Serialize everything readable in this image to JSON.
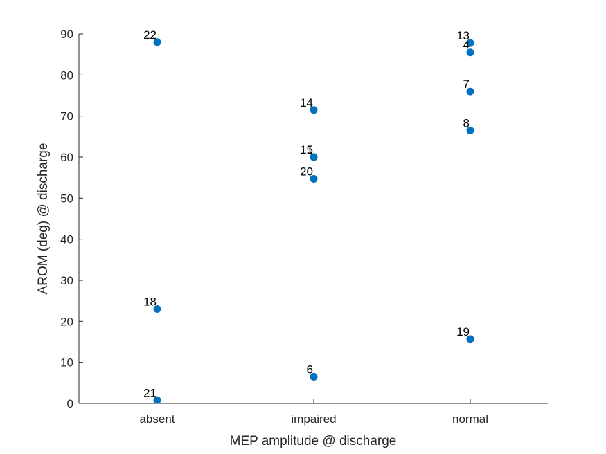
{
  "chart_data": {
    "type": "scatter",
    "title": "",
    "xlabel": "MEP amplitude @ discharge",
    "ylabel": "AROM (deg) @ discharge",
    "categories": [
      "absent",
      "impaired",
      "normal"
    ],
    "ylim": [
      0,
      90
    ],
    "yticks": [
      "0",
      "10",
      "20",
      "30",
      "40",
      "50",
      "60",
      "70",
      "80",
      "90"
    ],
    "grid": false,
    "legend": "none",
    "marker_color": "#0072BD",
    "points": [
      {
        "category": "absent",
        "y": 88,
        "label": "22"
      },
      {
        "category": "absent",
        "y": 23,
        "label": "18"
      },
      {
        "category": "absent",
        "y": 0.8,
        "label": "21"
      },
      {
        "category": "impaired",
        "y": 71.5,
        "label": "14"
      },
      {
        "category": "impaired",
        "y": 60,
        "label": "15"
      },
      {
        "category": "impaired",
        "y": 60,
        "label": "1"
      },
      {
        "category": "impaired",
        "y": 54.7,
        "label": "20"
      },
      {
        "category": "impaired",
        "y": 6.5,
        "label": "6"
      },
      {
        "category": "normal",
        "y": 87.8,
        "label": "13"
      },
      {
        "category": "normal",
        "y": 85.5,
        "label": "4"
      },
      {
        "category": "normal",
        "y": 76,
        "label": "7"
      },
      {
        "category": "normal",
        "y": 66.5,
        "label": "8"
      },
      {
        "category": "normal",
        "y": 15.7,
        "label": "19"
      }
    ]
  }
}
